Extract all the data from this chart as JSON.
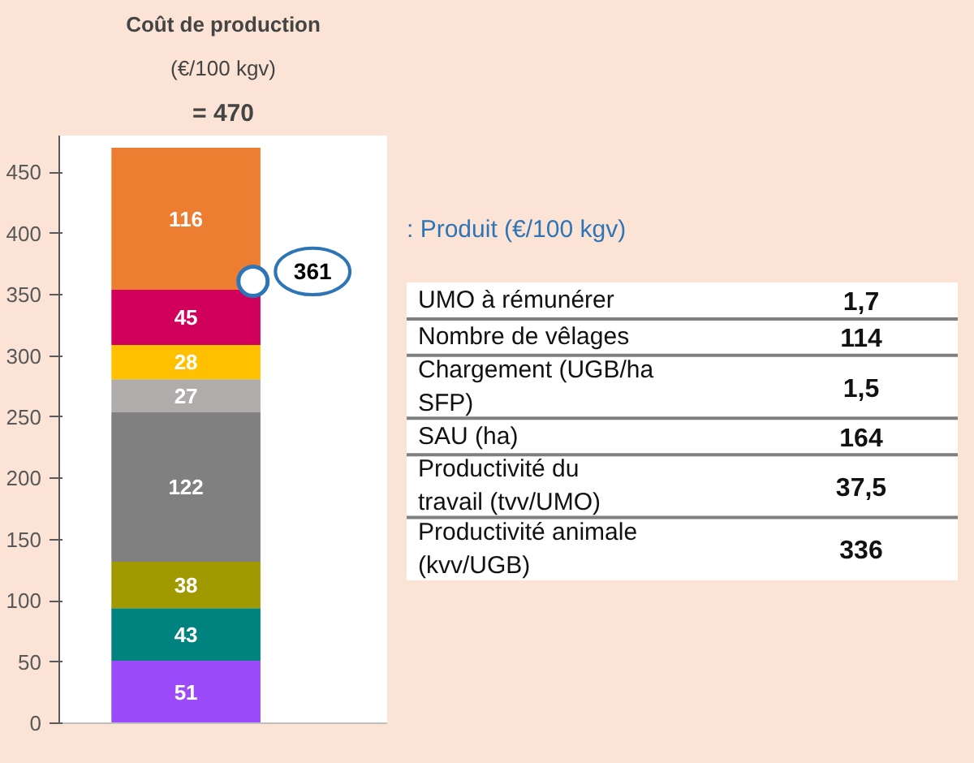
{
  "chart_data": [
    {
      "type": "bar",
      "title": "Coût de production",
      "subtitle": "(€/100 kgv)",
      "annotations": [
        "= 470",
        ": Produit (€/100 kgv)"
      ],
      "categories": [
        null
      ],
      "stacked": true,
      "data_labels": true,
      "ylim": [
        0,
        480
      ],
      "yticks": [
        0,
        50,
        100,
        150,
        200,
        250,
        300,
        350,
        400,
        450
      ],
      "grid": false,
      "tick_labels": "y",
      "series": [
        {
          "color": "#9c4bfa",
          "values": [
            51
          ]
        },
        {
          "color": "#00827f",
          "values": [
            43
          ]
        },
        {
          "color": "#a09a00",
          "values": [
            38
          ]
        },
        {
          "color": "#808080",
          "values": [
            122
          ]
        },
        {
          "color": "#b0acab",
          "values": [
            27
          ]
        },
        {
          "color": "#ffc000",
          "values": [
            28
          ]
        },
        {
          "color": "#d1005a",
          "values": [
            45
          ]
        },
        {
          "color": "#ed7d31",
          "values": [
            116
          ]
        },
        {
          "type": "scatter",
          "color": "#ffffff",
          "values": [
            361
          ],
          "value_labels": [
            "361"
          ]
        }
      ]
    },
    {
      "type": "other",
      "categories": [
        "UMO à rémunérer",
        "Nombre de vêlages",
        "Chargement (UGB/ha SFP)",
        "SAU (ha)",
        "Productivité du travail (tvv/UMO)",
        "Productivité animale (kvv/UGB)"
      ],
      "value_labels": [
        "1,7",
        "114",
        "1,5",
        "164",
        "37,5",
        "336"
      ]
    }
  ]
}
